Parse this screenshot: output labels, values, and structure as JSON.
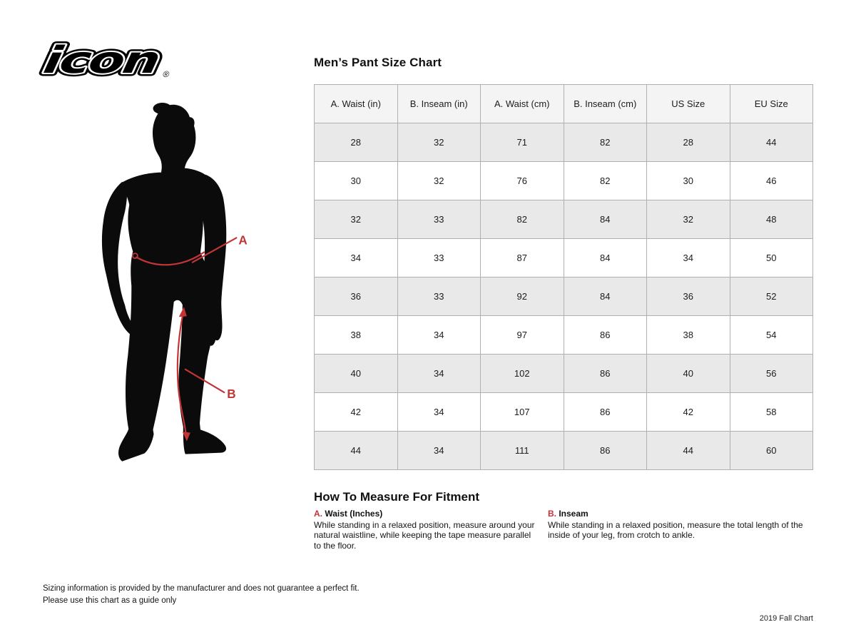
{
  "brand": {
    "logo_text": "icon",
    "registered_mark": "®"
  },
  "chart": {
    "title": "Men’s Pant Size Chart",
    "columns": [
      "A. Waist (in)",
      "B. Inseam (in)",
      "A. Waist (cm)",
      "B. Inseam (cm)",
      "US Size",
      "EU Size"
    ],
    "rows": [
      [
        "28",
        "32",
        "71",
        "82",
        "28",
        "44"
      ],
      [
        "30",
        "32",
        "76",
        "82",
        "30",
        "46"
      ],
      [
        "32",
        "33",
        "82",
        "84",
        "32",
        "48"
      ],
      [
        "34",
        "33",
        "87",
        "84",
        "34",
        "50"
      ],
      [
        "36",
        "33",
        "92",
        "84",
        "36",
        "52"
      ],
      [
        "38",
        "34",
        "97",
        "86",
        "38",
        "54"
      ],
      [
        "40",
        "34",
        "102",
        "86",
        "40",
        "56"
      ],
      [
        "42",
        "34",
        "107",
        "86",
        "42",
        "58"
      ],
      [
        "44",
        "34",
        "111",
        "86",
        "44",
        "60"
      ]
    ]
  },
  "figure": {
    "label_a": "A",
    "label_b": "B"
  },
  "measure": {
    "heading": "How To Measure For Fitment",
    "items": [
      {
        "prefix": "A.",
        "title": "Waist (Inches)",
        "text": "While standing in a relaxed position, measure around your natural waistline, while keeping the tape measure parallel to the floor."
      },
      {
        "prefix": "B.",
        "title": "Inseam",
        "text": "While standing in a relaxed position, measure the total length of the inside of your leg, from crotch to ankle."
      }
    ]
  },
  "footer": {
    "disclaimer_line1": "Sizing information is provided by the manufacturer and does not guarantee a perfect fit.",
    "disclaimer_line2": "Please use this chart as a guide only",
    "edition": "2019 Fall Chart"
  },
  "colors": {
    "accent_red": "#c23537",
    "silhouette_black": "#0b0b0b",
    "table_header_bg": "#f4f4f4",
    "table_alt_row_bg": "#e9e9e9",
    "table_border": "#b0b0b0"
  }
}
